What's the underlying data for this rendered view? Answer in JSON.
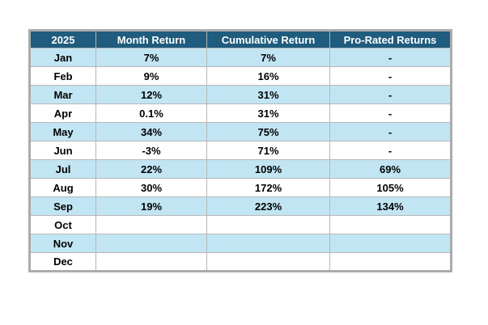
{
  "table": {
    "columns": [
      "2025",
      "Month Return",
      "Cumulative Return",
      "Pro-Rated Returns"
    ],
    "rows": [
      {
        "month": "Jan",
        "month_return": "7%",
        "cumulative_return": "7%",
        "pro_rated_return": "-"
      },
      {
        "month": "Feb",
        "month_return": "9%",
        "cumulative_return": "16%",
        "pro_rated_return": "-"
      },
      {
        "month": "Mar",
        "month_return": "12%",
        "cumulative_return": "31%",
        "pro_rated_return": "-"
      },
      {
        "month": "Apr",
        "month_return": "0.1%",
        "cumulative_return": "31%",
        "pro_rated_return": "-"
      },
      {
        "month": "May",
        "month_return": "34%",
        "cumulative_return": "75%",
        "pro_rated_return": "-"
      },
      {
        "month": "Jun",
        "month_return": "-3%",
        "cumulative_return": "71%",
        "pro_rated_return": "-"
      },
      {
        "month": "Jul",
        "month_return": "22%",
        "cumulative_return": "109%",
        "pro_rated_return": "69%"
      },
      {
        "month": "Aug",
        "month_return": "30%",
        "cumulative_return": "172%",
        "pro_rated_return": "105%"
      },
      {
        "month": "Sep",
        "month_return": "19%",
        "cumulative_return": "223%",
        "pro_rated_return": "134%"
      },
      {
        "month": "Oct",
        "month_return": "",
        "cumulative_return": "",
        "pro_rated_return": ""
      },
      {
        "month": "Nov",
        "month_return": "",
        "cumulative_return": "",
        "pro_rated_return": ""
      },
      {
        "month": "Dec",
        "month_return": "",
        "cumulative_return": "",
        "pro_rated_return": ""
      }
    ]
  },
  "colors": {
    "header_background": "#1F5C7D",
    "header_text": "#FFFFFF",
    "banded_row_background": "#C2E5F4",
    "plain_row_background": "#FFFFFF",
    "grid_line": "#B7B7B7",
    "outer_border": "#ABABAB",
    "cell_text": "#000000"
  }
}
